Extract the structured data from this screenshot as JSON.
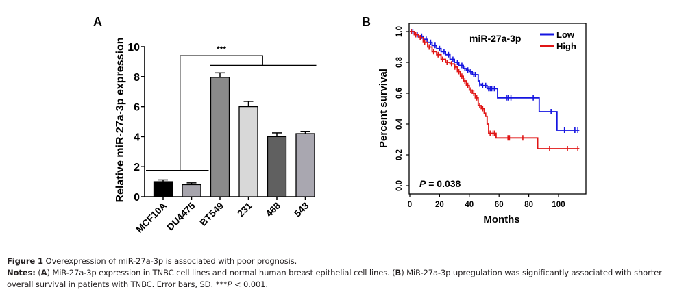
{
  "chart_data": [
    {
      "panel_label": "A",
      "type": "bar",
      "categories": [
        "MCF10A",
        "DU4475",
        "BT549",
        "231",
        "468",
        "543"
      ],
      "values": [
        1.0,
        0.8,
        7.95,
        6.0,
        4.0,
        4.2
      ],
      "error_bars_sd": [
        0.12,
        0.12,
        0.3,
        0.35,
        0.25,
        0.15
      ],
      "bar_colors": [
        "#000000",
        "#a7a5ad",
        "#8a8a8a",
        "#d8d8d8",
        "#606060",
        "#a9a7b0"
      ],
      "title": "",
      "xlabel": "",
      "ylabel": "Relative miR-27a-3p expression",
      "ylim": [
        0,
        10
      ],
      "yticks": [
        0,
        2,
        4,
        6,
        8,
        10
      ],
      "grid": false,
      "annotations": [
        {
          "type": "significance-bracket",
          "text": "***",
          "group1": [
            "MCF10A",
            "DU4475"
          ],
          "group2": [
            "BT549",
            "231",
            "468",
            "543"
          ]
        }
      ]
    },
    {
      "panel_label": "B",
      "type": "line",
      "subtype": "kaplan-meier",
      "title": "",
      "legend_title": "miR-27a-3p",
      "legend_position": "top-right",
      "xlabel": "Months",
      "ylabel": "Percent survival",
      "xlim": [
        0,
        115
      ],
      "ylim": [
        0,
        1.0
      ],
      "xticks": [
        0,
        20,
        40,
        60,
        80,
        100
      ],
      "yticks": [
        "0.0",
        "0.2",
        "0.4",
        "0.6",
        "0.8",
        "1.0"
      ],
      "grid": false,
      "annotation": {
        "p_label": "P",
        "p_text": " = 0.038"
      },
      "series": [
        {
          "name": "Low",
          "color": "#1515e0",
          "x": [
            0,
            3,
            6,
            9,
            12,
            15,
            18,
            21,
            24,
            27,
            30,
            33,
            36,
            38,
            40,
            42,
            44,
            45,
            46,
            47,
            48,
            50,
            52,
            55,
            58,
            59,
            66,
            68,
            84,
            87,
            95,
            99,
            104,
            110,
            114
          ],
          "y": [
            1.0,
            0.98,
            0.97,
            0.95,
            0.93,
            0.91,
            0.89,
            0.87,
            0.85,
            0.82,
            0.8,
            0.78,
            0.76,
            0.75,
            0.74,
            0.72,
            0.72,
            0.72,
            0.68,
            0.66,
            0.65,
            0.65,
            0.63,
            0.63,
            0.63,
            0.57,
            0.57,
            0.57,
            0.57,
            0.48,
            0.48,
            0.36,
            0.36,
            0.36,
            0.36
          ],
          "censor_x": [
            2,
            5,
            8,
            11,
            14,
            17,
            20,
            23,
            26,
            29,
            32,
            35,
            37,
            39,
            41,
            43,
            44,
            47,
            49,
            51,
            53,
            54,
            55,
            56,
            57,
            65,
            66,
            68,
            83,
            95,
            104,
            111,
            113
          ]
        },
        {
          "name": "High",
          "color": "#e01515",
          "x": [
            0,
            3,
            6,
            9,
            12,
            15,
            18,
            21,
            24,
            27,
            30,
            32,
            34,
            36,
            38,
            40,
            42,
            44,
            46,
            48,
            50,
            51,
            52,
            53,
            56,
            58,
            66,
            68,
            76,
            86,
            94,
            106,
            114
          ],
          "y": [
            1.0,
            0.98,
            0.96,
            0.93,
            0.9,
            0.87,
            0.85,
            0.82,
            0.8,
            0.79,
            0.77,
            0.74,
            0.71,
            0.68,
            0.65,
            0.62,
            0.6,
            0.57,
            0.52,
            0.5,
            0.47,
            0.45,
            0.4,
            0.34,
            0.34,
            0.31,
            0.31,
            0.31,
            0.31,
            0.24,
            0.24,
            0.24,
            0.24
          ],
          "censor_x": [
            1,
            4,
            7,
            10,
            13,
            16,
            19,
            22,
            25,
            28,
            30,
            31,
            33,
            35,
            37,
            39,
            41,
            43,
            45,
            47,
            49,
            54,
            56,
            57,
            66,
            67,
            76,
            94,
            106,
            113
          ]
        }
      ]
    }
  ],
  "caption": {
    "line1_bold": "Figure 1",
    "line1_text": " Overexpression of miR-27a-3p is associated with poor prognosis.",
    "line2_bold": "Notes:",
    "line2_a_open": " (",
    "line2_a_label": "A",
    "line2_a_text": ") MiR-27a-3p expression in TNBC cell lines and normal human breast epithelial cell lines. (",
    "line2_b_label": "B",
    "line2_b_text": ") MiR-27a-3p upregulation was significantly associated with shorter",
    "line3_text": "overall survival in patients with TNBC. Error bars, SD. ***",
    "line3_p": "P",
    "line3_tail": " < 0.001."
  }
}
